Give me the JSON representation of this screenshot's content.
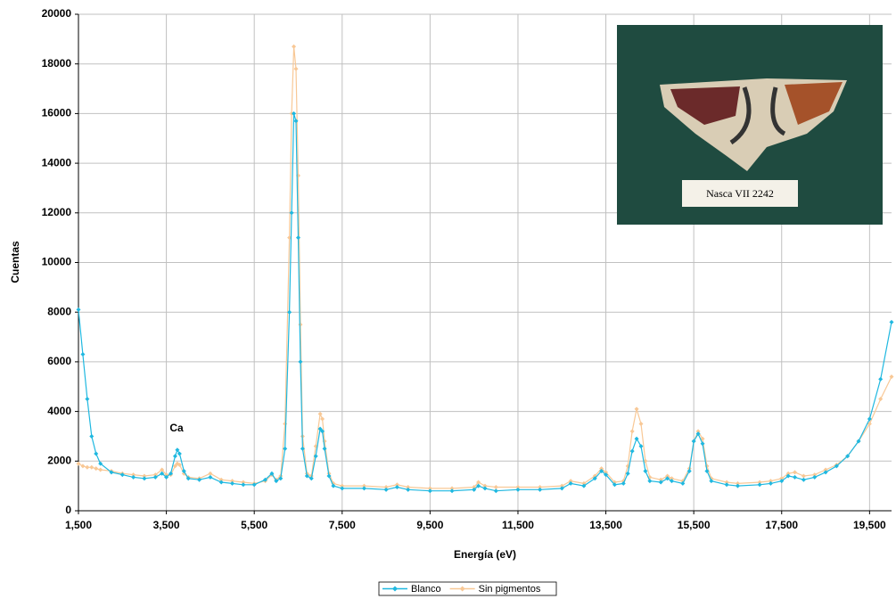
{
  "chart_data": {
    "type": "line",
    "x_label": "Energía (eV)",
    "y_label": "Cuentas",
    "annotations": [
      "Ca"
    ],
    "photo_label": "Nasca VII  2242",
    "x": [
      1500,
      1600,
      1700,
      1800,
      1900,
      2000,
      2250,
      2500,
      2750,
      3000,
      3250,
      3400,
      3500,
      3600,
      3700,
      3750,
      3800,
      3900,
      4000,
      4250,
      4500,
      4750,
      5000,
      5250,
      5500,
      5750,
      5900,
      6000,
      6100,
      6200,
      6300,
      6350,
      6400,
      6450,
      6500,
      6550,
      6600,
      6700,
      6800,
      6900,
      7000,
      7050,
      7100,
      7200,
      7300,
      7500,
      8000,
      8500,
      8750,
      9000,
      9500,
      10000,
      10500,
      10600,
      10750,
      11000,
      11500,
      12000,
      12500,
      12700,
      13000,
      13250,
      13400,
      13500,
      13700,
      13900,
      14000,
      14100,
      14200,
      14300,
      14400,
      14500,
      14750,
      14900,
      15000,
      15250,
      15400,
      15500,
      15600,
      15700,
      15800,
      15900,
      16250,
      16500,
      17000,
      17250,
      17500,
      17650,
      17800,
      18000,
      18250,
      18500,
      18750,
      19000,
      19250,
      19500,
      19750,
      20000
    ],
    "series": [
      {
        "name": "Blanco",
        "color": "#1fb8e0",
        "values": [
          8100,
          6300,
          4500,
          3000,
          2300,
          1900,
          1550,
          1450,
          1350,
          1300,
          1350,
          1500,
          1350,
          1500,
          2200,
          2450,
          2300,
          1600,
          1300,
          1250,
          1350,
          1150,
          1100,
          1050,
          1050,
          1250,
          1500,
          1200,
          1300,
          2500,
          8000,
          12000,
          16000,
          15700,
          11000,
          6000,
          2500,
          1400,
          1300,
          2200,
          3300,
          3200,
          2500,
          1400,
          1000,
          900,
          900,
          850,
          950,
          850,
          800,
          800,
          850,
          1000,
          900,
          800,
          850,
          850,
          900,
          1100,
          1000,
          1300,
          1600,
          1450,
          1050,
          1100,
          1500,
          2400,
          2900,
          2600,
          1600,
          1200,
          1150,
          1300,
          1200,
          1100,
          1600,
          2800,
          3100,
          2700,
          1600,
          1200,
          1050,
          1000,
          1050,
          1100,
          1200,
          1400,
          1350,
          1250,
          1350,
          1550,
          1800,
          2200,
          2800,
          3700,
          5300,
          7600
        ]
      },
      {
        "name": "Sin pigmentos",
        "color": "#f8c896",
        "values": [
          1900,
          1800,
          1750,
          1750,
          1700,
          1650,
          1600,
          1500,
          1450,
          1400,
          1450,
          1650,
          1450,
          1450,
          1800,
          1900,
          1850,
          1500,
          1350,
          1300,
          1500,
          1250,
          1200,
          1150,
          1100,
          1200,
          1450,
          1250,
          1400,
          3500,
          11000,
          16000,
          18700,
          17800,
          13500,
          7500,
          3000,
          1500,
          1400,
          2600,
          3900,
          3700,
          2800,
          1500,
          1100,
          1000,
          1000,
          950,
          1050,
          950,
          900,
          900,
          950,
          1150,
          1000,
          950,
          950,
          950,
          1000,
          1200,
          1100,
          1400,
          1700,
          1550,
          1150,
          1200,
          1800,
          3200,
          4100,
          3500,
          2000,
          1350,
          1250,
          1400,
          1300,
          1200,
          1700,
          2800,
          3200,
          2900,
          1800,
          1300,
          1150,
          1100,
          1150,
          1200,
          1300,
          1500,
          1550,
          1400,
          1450,
          1650,
          1850,
          2200,
          2800,
          3500,
          4500,
          5400
        ]
      }
    ],
    "xlim": [
      1500,
      20000
    ],
    "ylim": [
      0,
      20000
    ],
    "xticks": [
      {
        "value": 1500,
        "label": "1,500"
      },
      {
        "value": 3500,
        "label": "3,500"
      },
      {
        "value": 5500,
        "label": "5,500"
      },
      {
        "value": 7500,
        "label": "7,500"
      },
      {
        "value": 9500,
        "label": "9,500"
      },
      {
        "value": 11500,
        "label": "11,500"
      },
      {
        "value": 13500,
        "label": "13,500"
      },
      {
        "value": 15500,
        "label": "15,500"
      },
      {
        "value": 17500,
        "label": "17,500"
      },
      {
        "value": 19500,
        "label": "19,500"
      }
    ],
    "yticks": [
      0,
      2000,
      4000,
      6000,
      8000,
      10000,
      12000,
      14000,
      16000,
      18000,
      20000
    ],
    "grid": true,
    "legend": "bottom"
  }
}
